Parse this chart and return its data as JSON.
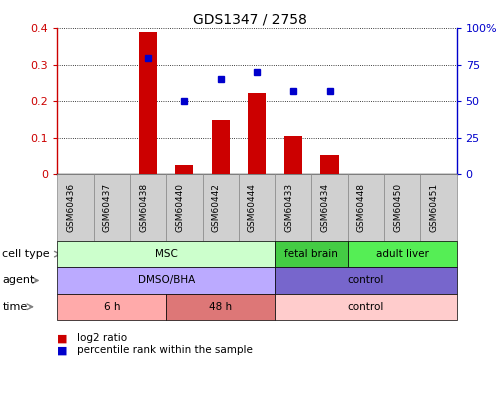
{
  "title": "GDS1347 / 2758",
  "samples": [
    "GSM60436",
    "GSM60437",
    "GSM60438",
    "GSM60440",
    "GSM60442",
    "GSM60444",
    "GSM60433",
    "GSM60434",
    "GSM60448",
    "GSM60450",
    "GSM60451"
  ],
  "log2_ratio": [
    0.0,
    0.0,
    0.39,
    0.025,
    0.148,
    0.222,
    0.105,
    0.052,
    0.0,
    0.0,
    0.0
  ],
  "percentile_rank": [
    null,
    null,
    0.8,
    0.5,
    0.65,
    0.7,
    0.57,
    0.57,
    null,
    null,
    null
  ],
  "bar_color": "#cc0000",
  "dot_color": "#0000cc",
  "ylim_left": [
    0,
    0.4
  ],
  "ylim_right": [
    0,
    100
  ],
  "yticks_left": [
    0,
    0.1,
    0.2,
    0.3,
    0.4
  ],
  "ytick_labels_left": [
    "0",
    "0.1",
    "0.2",
    "0.3",
    "0.4"
  ],
  "ytick_labels_right": [
    "0",
    "25",
    "50",
    "75",
    "100%"
  ],
  "cell_type_groups": [
    {
      "label": "MSC",
      "start": 0,
      "end": 5,
      "color": "#ccffcc"
    },
    {
      "label": "fetal brain",
      "start": 6,
      "end": 7,
      "color": "#44cc44"
    },
    {
      "label": "adult liver",
      "start": 8,
      "end": 10,
      "color": "#55ee55"
    }
  ],
  "agent_groups": [
    {
      "label": "DMSO/BHA",
      "start": 0,
      "end": 5,
      "color": "#bbaaff"
    },
    {
      "label": "control",
      "start": 6,
      "end": 10,
      "color": "#7766cc"
    }
  ],
  "time_groups": [
    {
      "label": "6 h",
      "start": 0,
      "end": 2,
      "color": "#ffaaaa"
    },
    {
      "label": "48 h",
      "start": 3,
      "end": 5,
      "color": "#dd7777"
    },
    {
      "label": "control",
      "start": 6,
      "end": 10,
      "color": "#ffcccc"
    }
  ],
  "row_labels": [
    "cell type",
    "agent",
    "time"
  ],
  "sample_box_color": "#d0d0d0",
  "sample_box_edge": "#888888"
}
